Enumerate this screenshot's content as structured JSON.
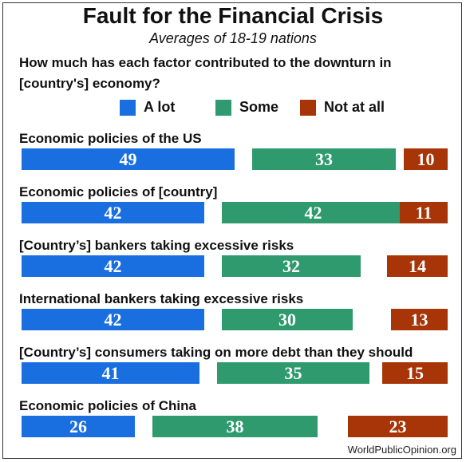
{
  "title": "Fault for the Financial Crisis",
  "subtitle": "Averages of 18-19 nations",
  "question": "How much has each factor contributed to the downturn in [country's] economy?",
  "legend": [
    {
      "label": "A lot",
      "color": "#1a6fe0"
    },
    {
      "label": "Some",
      "color": "#2e9a6e"
    },
    {
      "label": "Not at all",
      "color": "#a83508"
    }
  ],
  "source": "WorldPublicOpinion.org",
  "chart_data": {
    "type": "bar",
    "orientation": "horizontal",
    "stacked_segments_separated": true,
    "categories": [
      "Economic policies of the US",
      "Economic policies of [country]",
      "[Country’s] bankers taking excessive risks",
      "International bankers taking excessive risks",
      "[Country’s] consumers taking on more debt than they should",
      "Economic policies of China"
    ],
    "series": [
      {
        "name": "A lot",
        "color": "#1a6fe0",
        "values": [
          49,
          42,
          42,
          42,
          41,
          26
        ]
      },
      {
        "name": "Some",
        "color": "#2e9a6e",
        "values": [
          33,
          42,
          32,
          30,
          35,
          38
        ]
      },
      {
        "name": "Not at all",
        "color": "#a83508",
        "values": [
          10,
          11,
          14,
          13,
          15,
          23
        ]
      }
    ],
    "title": "Fault for the Financial Crisis",
    "subtitle": "Averages of 18-19 nations",
    "legend_position": "top",
    "grid": false
  }
}
